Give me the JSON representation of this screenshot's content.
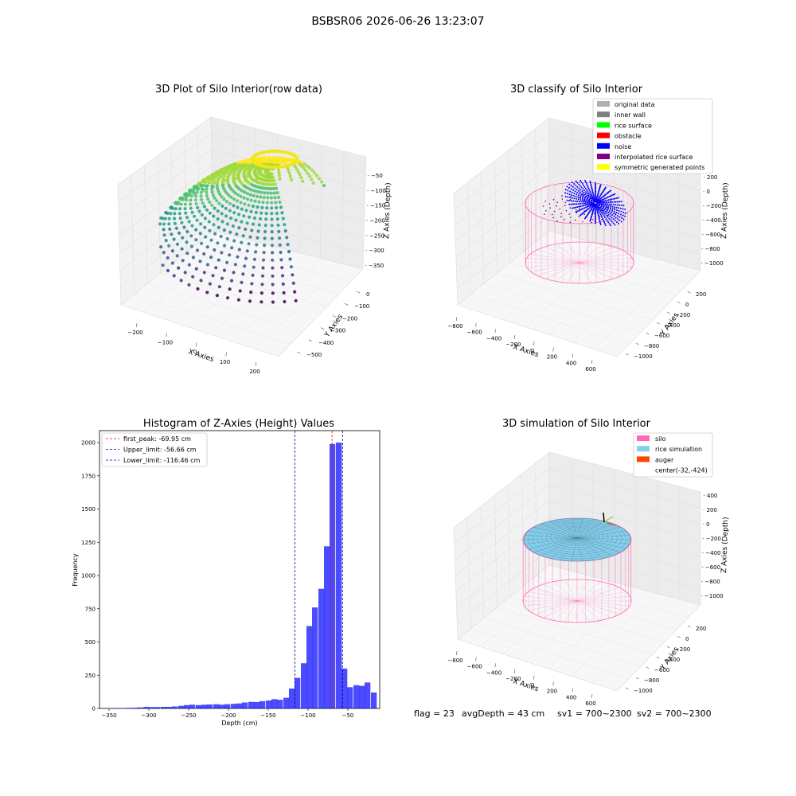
{
  "suptitle": "BSBSR06 2026-06-26 13:23:07",
  "footer": {
    "flag": "flag = 23",
    "avg": "avgDepth = 43 cm",
    "sv1": "sv1 = 700~2300",
    "sv2": "sv2 = 700~2300"
  },
  "chart_data": [
    {
      "type": "scatter",
      "title": "3D Plot of Silo Interior(row data)",
      "xlabel": "X Axies",
      "ylabel": "Y Axies",
      "zlabel": "Z Axies (Depth)",
      "x_ticks": [
        "−200",
        "−100",
        "0",
        "100",
        "200"
      ],
      "y_ticks": [
        "0",
        "−100",
        "−200",
        "−300",
        "−400",
        "−500"
      ],
      "z_ticks": [
        "−50",
        "−100",
        "−150",
        "−200",
        "−250",
        "−300",
        "−350"
      ],
      "xlim": [
        -250,
        250
      ],
      "ylim": [
        -550,
        50
      ],
      "zlim": [
        -380,
        -20
      ],
      "colormap": "viridis"
    },
    {
      "type": "scatter",
      "title": "3D classify of Silo Interior",
      "xlabel": "X Axies",
      "ylabel": "Y Axies",
      "zlabel": "Z Axies (Depth)",
      "x_ticks": [
        "−800",
        "−600",
        "−400",
        "−200",
        "0",
        "200",
        "400",
        "600"
      ],
      "y_ticks": [
        "200",
        "0",
        "−200",
        "−400",
        "−600",
        "−800",
        "−1000"
      ],
      "z_ticks": [
        "200",
        "0",
        "−200",
        "−400",
        "−600",
        "−800",
        "−1000"
      ],
      "legend_position": "top-right",
      "legend": [
        {
          "label": "original data",
          "color": "#b0b0b0"
        },
        {
          "label": "inner wall",
          "color": "#808080"
        },
        {
          "label": "rice surface",
          "color": "#00ff00"
        },
        {
          "label": "obstacle",
          "color": "#ff0000"
        },
        {
          "label": "noise",
          "color": "#0000ff"
        },
        {
          "label": "interpolated rice surface",
          "color": "#800080"
        },
        {
          "label": "symmetric generated points",
          "color": "#ffff00"
        }
      ]
    },
    {
      "type": "bar",
      "title": "Histogram of Z-Axies (Height) Values",
      "xlabel": "Depth (cm)",
      "ylabel": "Frequency",
      "xlim": [
        -362,
        -10
      ],
      "ylim": [
        0,
        2090
      ],
      "x_ticks": [
        -350,
        -300,
        -250,
        -200,
        -150,
        -100,
        -50
      ],
      "y_ticks": [
        0,
        250,
        500,
        750,
        1000,
        1250,
        1500,
        1750,
        2000
      ],
      "bin_width": 7.3,
      "bins_start": [
        -344,
        -337,
        -329,
        -322,
        -315,
        -307,
        -300,
        -293,
        -285,
        -278,
        -271,
        -263,
        -256,
        -249,
        -241,
        -234,
        -227,
        -219,
        -212,
        -205,
        -197,
        -190,
        -183,
        -175,
        -168,
        -161,
        -153,
        -146,
        -139,
        -131,
        -124,
        -117,
        -109,
        -102,
        -95,
        -87,
        -80,
        -73,
        -65,
        -58,
        -51,
        -43,
        -36,
        -29,
        -21
      ],
      "counts": [
        2,
        3,
        4,
        5,
        8,
        12,
        10,
        11,
        12,
        12,
        15,
        20,
        25,
        28,
        25,
        28,
        30,
        32,
        28,
        32,
        35,
        38,
        45,
        50,
        48,
        55,
        60,
        70,
        65,
        80,
        150,
        230,
        340,
        620,
        760,
        900,
        1220,
        1990,
        2000,
        300,
        160,
        175,
        170,
        195,
        120
      ],
      "bar_color": "#0000ff",
      "vlines": [
        {
          "label": "first_peak: -69.95 cm",
          "x": -69.95,
          "color": "#ff0000"
        },
        {
          "label": "Upper_limit: -56.66 cm",
          "x": -56.66,
          "color": "#0000aa"
        },
        {
          "label": "Lower_limit: -116.46 cm",
          "x": -116.46,
          "color": "#0000aa"
        }
      ],
      "legend_position": "top-left"
    },
    {
      "type": "scatter",
      "title": "3D simulation of Silo Interior",
      "xlabel": "X Axies",
      "ylabel": "Y Axies",
      "zlabel": "Z Axies (Depth)",
      "x_ticks": [
        "−800",
        "−600",
        "−400",
        "−200",
        "0",
        "200",
        "400",
        "600"
      ],
      "y_ticks": [
        "200",
        "0",
        "−200",
        "−400",
        "−600",
        "−800",
        "−1000"
      ],
      "z_ticks": [
        "400",
        "200",
        "0",
        "−200",
        "−400",
        "−600",
        "−800",
        "−1000"
      ],
      "legend_position": "top-right",
      "legend": [
        {
          "label": "silo",
          "color": "#ff69b4"
        },
        {
          "label": "rice simulation",
          "color": "#87ceeb"
        },
        {
          "label": "auger",
          "color": "#ff4500"
        },
        {
          "label": "center(-32,-424)",
          "color": ""
        }
      ]
    }
  ]
}
